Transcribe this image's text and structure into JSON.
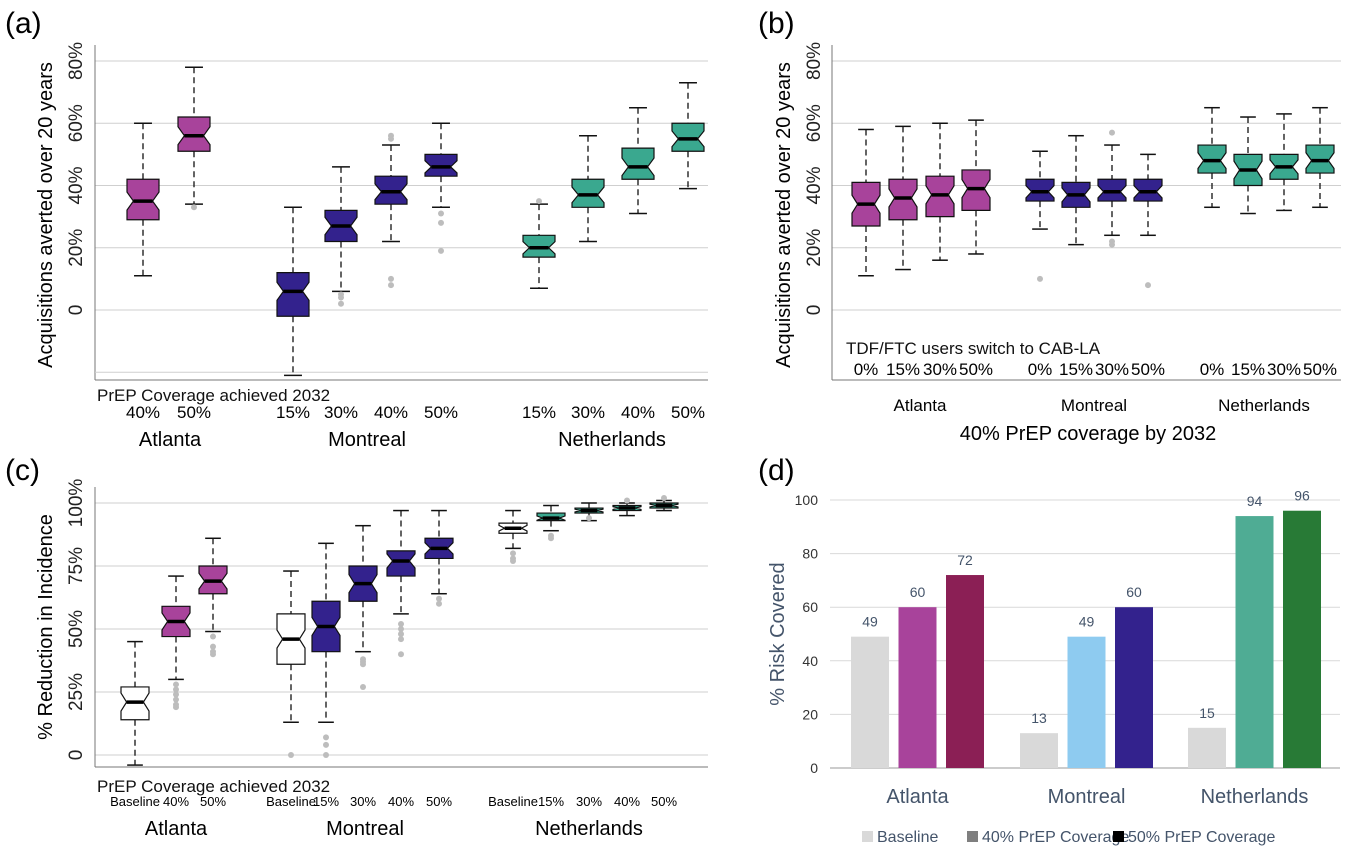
{
  "chart_data": [
    {
      "panel": "(a)",
      "type": "boxplot",
      "ylabel": "Acquisitions averted over 20 years",
      "yticks": [
        "0",
        "20%",
        "40%",
        "60%",
        "80%"
      ],
      "ylim": [
        -20,
        85
      ],
      "note": "PrEP Coverage achieved 2032",
      "groups": [
        {
          "name": "Atlanta",
          "boxes": [
            {
              "label": "40%",
              "color": "#a8439b",
              "min": 11,
              "q1": 29,
              "median": 35,
              "q3": 42,
              "max": 60,
              "outliers": []
            },
            {
              "label": "50%",
              "color": "#a8439b",
              "min": 34,
              "q1": 51,
              "median": 56,
              "q3": 62,
              "max": 78,
              "outliers": [
                33
              ]
            }
          ]
        },
        {
          "name": "Montreal",
          "boxes": [
            {
              "label": "15%",
              "color": "#33228d",
              "min": -21,
              "q1": -2,
              "median": 6,
              "q3": 12,
              "max": 33,
              "outliers": []
            },
            {
              "label": "30%",
              "color": "#33228d",
              "min": 6,
              "q1": 22,
              "median": 27,
              "q3": 32,
              "max": 46,
              "outliers": [
                5,
                4,
                2
              ]
            },
            {
              "label": "40%",
              "color": "#33228d",
              "min": 22,
              "q1": 34,
              "median": 38,
              "q3": 43,
              "max": 53,
              "outliers": [
                56,
                55,
                10,
                8
              ]
            },
            {
              "label": "50%",
              "color": "#33228d",
              "min": 33,
              "q1": 43,
              "median": 46,
              "q3": 50,
              "max": 60,
              "outliers": [
                31,
                28,
                19
              ]
            }
          ]
        },
        {
          "name": "Netherlands",
          "boxes": [
            {
              "label": "15%",
              "color": "#3aa88f",
              "min": 7,
              "q1": 17,
              "median": 20,
              "q3": 24,
              "max": 34,
              "outliers": [
                35
              ]
            },
            {
              "label": "30%",
              "color": "#3aa88f",
              "min": 22,
              "q1": 33,
              "median": 37,
              "q3": 42,
              "max": 56,
              "outliers": []
            },
            {
              "label": "40%",
              "color": "#3aa88f",
              "min": 31,
              "q1": 42,
              "median": 46,
              "q3": 52,
              "max": 65,
              "outliers": []
            },
            {
              "label": "50%",
              "color": "#3aa88f",
              "min": 39,
              "q1": 51,
              "median": 55,
              "q3": 60,
              "max": 73,
              "outliers": []
            }
          ]
        }
      ]
    },
    {
      "panel": "(b)",
      "type": "boxplot",
      "ylabel": "Acquisitions averted over 20 years",
      "yticks": [
        "0",
        "20%",
        "40%",
        "60%",
        "80%"
      ],
      "ylim": [
        -20,
        85
      ],
      "note": "TDF/FTC users switch to CAB-LA",
      "xlabel": "40% PrEP coverage by 2032",
      "groups": [
        {
          "name": "Atlanta",
          "boxes": [
            {
              "label": "0%",
              "color": "#a8439b",
              "min": 11,
              "q1": 27,
              "median": 34,
              "q3": 41,
              "max": 58,
              "outliers": []
            },
            {
              "label": "15%",
              "color": "#a8439b",
              "min": 13,
              "q1": 29,
              "median": 36,
              "q3": 42,
              "max": 59,
              "outliers": []
            },
            {
              "label": "30%",
              "color": "#a8439b",
              "min": 16,
              "q1": 30,
              "median": 37,
              "q3": 43,
              "max": 60,
              "outliers": []
            },
            {
              "label": "50%",
              "color": "#a8439b",
              "min": 18,
              "q1": 32,
              "median": 39,
              "q3": 45,
              "max": 61,
              "outliers": []
            }
          ]
        },
        {
          "name": "Montreal",
          "boxes": [
            {
              "label": "0%",
              "color": "#33228d",
              "min": 26,
              "q1": 35,
              "median": 38,
              "q3": 42,
              "max": 51,
              "outliers": [
                10
              ]
            },
            {
              "label": "15%",
              "color": "#33228d",
              "min": 21,
              "q1": 33,
              "median": 37,
              "q3": 41,
              "max": 56,
              "outliers": []
            },
            {
              "label": "30%",
              "color": "#33228d",
              "min": 24,
              "q1": 35,
              "median": 38,
              "q3": 42,
              "max": 53,
              "outliers": [
                57,
                22,
                21
              ]
            },
            {
              "label": "50%",
              "color": "#33228d",
              "min": 24,
              "q1": 35,
              "median": 38,
              "q3": 42,
              "max": 50,
              "outliers": [
                8
              ]
            }
          ]
        },
        {
          "name": "Netherlands",
          "boxes": [
            {
              "label": "0%",
              "color": "#3aa88f",
              "min": 33,
              "q1": 44,
              "median": 48,
              "q3": 53,
              "max": 65,
              "outliers": []
            },
            {
              "label": "15%",
              "color": "#3aa88f",
              "min": 31,
              "q1": 40,
              "median": 45,
              "q3": 50,
              "max": 62,
              "outliers": []
            },
            {
              "label": "30%",
              "color": "#3aa88f",
              "min": 32,
              "q1": 42,
              "median": 46,
              "q3": 50,
              "max": 63,
              "outliers": []
            },
            {
              "label": "50%",
              "color": "#3aa88f",
              "min": 33,
              "q1": 44,
              "median": 48,
              "q3": 53,
              "max": 65,
              "outliers": []
            }
          ]
        }
      ]
    },
    {
      "panel": "(c)",
      "type": "boxplot",
      "ylabel": "% Reduction in Incidence",
      "yticks": [
        "0",
        "25%",
        "50%",
        "75%",
        "100%"
      ],
      "ylim": [
        -5,
        105
      ],
      "note": "PrEP Coverage achieved 2032",
      "groups": [
        {
          "name": "Atlanta",
          "boxes": [
            {
              "label": "Baseline",
              "color": "#ffffff",
              "min": -4,
              "q1": 14,
              "median": 21,
              "q3": 27,
              "max": 45,
              "outliers": []
            },
            {
              "label": "40%",
              "color": "#a8439b",
              "min": 30,
              "q1": 47,
              "median": 53,
              "q3": 59,
              "max": 71,
              "outliers": [
                28,
                26,
                24,
                22,
                20,
                19
              ]
            },
            {
              "label": "50%",
              "color": "#a8439b",
              "min": 49,
              "q1": 64,
              "median": 69,
              "q3": 75,
              "max": 86,
              "outliers": [
                47,
                43,
                41,
                40
              ]
            }
          ]
        },
        {
          "name": "Montreal",
          "boxes": [
            {
              "label": "Baseline",
              "color": "#ffffff",
              "min": 13,
              "q1": 36,
              "median": 46,
              "q3": 56,
              "max": 73,
              "outliers": [
                0
              ]
            },
            {
              "label": "15%",
              "color": "#33228d",
              "min": 13,
              "q1": 41,
              "median": 51,
              "q3": 61,
              "max": 84,
              "outliers": [
                7,
                4,
                0
              ]
            },
            {
              "label": "30%",
              "color": "#33228d",
              "min": 41,
              "q1": 61,
              "median": 68,
              "q3": 75,
              "max": 91,
              "outliers": [
                38,
                37,
                36,
                27
              ]
            },
            {
              "label": "40%",
              "color": "#33228d",
              "min": 56,
              "q1": 71,
              "median": 77,
              "q3": 81,
              "max": 97,
              "outliers": [
                52,
                50,
                48,
                46,
                40
              ]
            },
            {
              "label": "50%",
              "color": "#33228d",
              "min": 64,
              "q1": 78,
              "median": 82,
              "q3": 86,
              "max": 97,
              "outliers": [
                62,
                60
              ]
            }
          ]
        },
        {
          "name": "Netherlands",
          "boxes": [
            {
              "label": "Baseline",
              "color": "#ffffff",
              "min": 82,
              "q1": 88,
              "median": 90,
              "q3": 92,
              "max": 97,
              "outliers": [
                80,
                78,
                77
              ]
            },
            {
              "label": "15%",
              "color": "#3aa88f",
              "min": 89,
              "q1": 93,
              "median": 94,
              "q3": 96,
              "max": 99,
              "outliers": [
                87,
                86
              ]
            },
            {
              "label": "30%",
              "color": "#3aa88f",
              "min": 93,
              "q1": 96,
              "median": 97,
              "q3": 98,
              "max": 100,
              "outliers": [
                94
              ]
            },
            {
              "label": "40%",
              "color": "#3aa88f",
              "min": 95,
              "q1": 97,
              "median": 98,
              "q3": 99,
              "max": 100,
              "outliers": [
                101
              ]
            },
            {
              "label": "50%",
              "color": "#3aa88f",
              "min": 97,
              "q1": 98,
              "median": 99,
              "q3": 100,
              "max": 101,
              "outliers": [
                102
              ]
            }
          ]
        }
      ]
    },
    {
      "panel": "(d)",
      "type": "bar",
      "ylabel": "% Risk Covered",
      "ylim": [
        0,
        100
      ],
      "yticks": [
        "0",
        "20",
        "40",
        "60",
        "80",
        "100"
      ],
      "legend": [
        {
          "label": "Baseline",
          "color": "#d9d9d9"
        },
        {
          "label": "40% PrEP Coverage",
          "color": "#7f7f7f"
        },
        {
          "label": "50% PrEP Coverage",
          "color": "#000000"
        }
      ],
      "groups": [
        {
          "name": "Atlanta",
          "bars": [
            {
              "value": 49,
              "color": "#d9d9d9"
            },
            {
              "value": 60,
              "color": "#a8439b"
            },
            {
              "value": 72,
              "color": "#8b1f55"
            }
          ]
        },
        {
          "name": "Montreal",
          "bars": [
            {
              "value": 13,
              "color": "#d9d9d9"
            },
            {
              "value": 49,
              "color": "#8ecbf0"
            },
            {
              "value": 60,
              "color": "#33228d"
            }
          ]
        },
        {
          "name": "Netherlands",
          "bars": [
            {
              "value": 15,
              "color": "#d9d9d9"
            },
            {
              "value": 94,
              "color": "#4fac94"
            },
            {
              "value": 96,
              "color": "#287a36"
            }
          ]
        }
      ]
    }
  ]
}
